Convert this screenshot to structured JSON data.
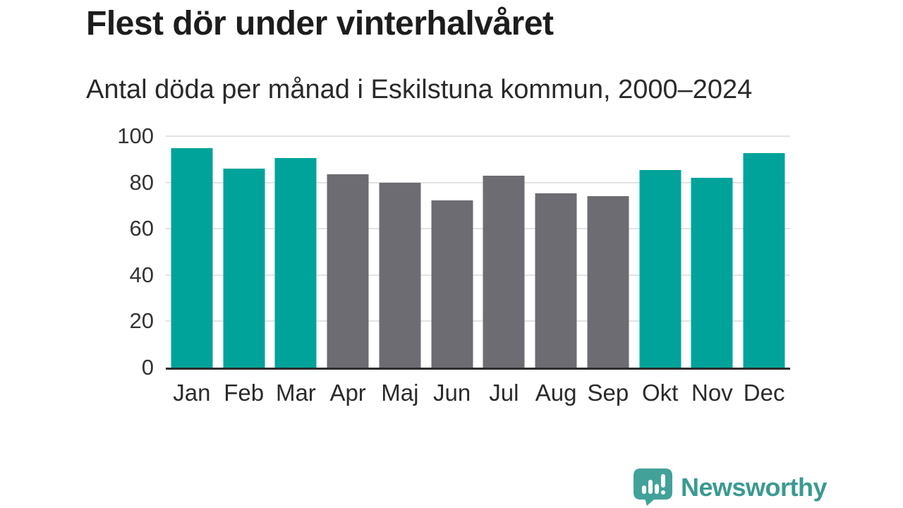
{
  "header": {
    "title": "Flest dör under vinterhalvåret",
    "subtitle": "Antal döda per månad i Eskilstuna kommun, 2000–2024"
  },
  "chart_data": {
    "type": "bar",
    "title": "Flest dör under vinterhalvåret",
    "subtitle": "Antal döda per månad i Eskilstuna kommun, 2000–2024",
    "categories": [
      "Jan",
      "Feb",
      "Mar",
      "Apr",
      "Maj",
      "Jun",
      "Jul",
      "Aug",
      "Sep",
      "Okt",
      "Nov",
      "Dec"
    ],
    "values": [
      94.8,
      86.0,
      90.5,
      83.5,
      80.0,
      72.2,
      82.9,
      75.3,
      74.2,
      85.5,
      81.9,
      92.6
    ],
    "bar_colors": [
      "teal",
      "teal",
      "teal",
      "gray",
      "gray",
      "gray",
      "gray",
      "gray",
      "gray",
      "teal",
      "teal",
      "teal"
    ],
    "colors": {
      "teal": "#00a39a",
      "gray": "#6d6c72"
    },
    "xlabel": "",
    "ylabel": "",
    "ylim": [
      0,
      100
    ],
    "yticks": [
      0,
      20,
      40,
      60,
      80,
      100
    ],
    "grid": true,
    "legend": "none",
    "gridline_color": "#e3e3e3",
    "baseline_color": "#2d2d2d"
  },
  "footer": {
    "brand": "Newsworthy",
    "brand_color": "#3a9a91",
    "logo_icon": "newsworthy-speech-bubble-bar-chart-icon",
    "logo_color": "#42a29a"
  }
}
